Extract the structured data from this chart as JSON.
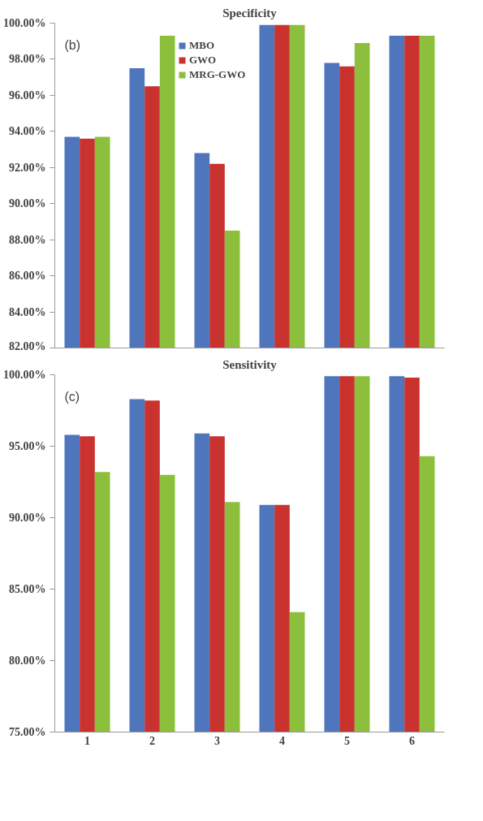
{
  "chart_data": [
    {
      "type": "bar",
      "title": "Specificity",
      "annotations": [
        "(b)"
      ],
      "categories": [
        "1",
        "2",
        "3",
        "4",
        "5",
        "6"
      ],
      "series": [
        {
          "name": "MBO",
          "color": "#4f75bd",
          "values": [
            93.7,
            97.5,
            92.8,
            99.9,
            97.8,
            99.3
          ]
        },
        {
          "name": "GWO",
          "color": "#c9322e",
          "values": [
            93.6,
            96.5,
            92.2,
            99.9,
            97.6,
            99.3
          ]
        },
        {
          "name": "MRG-GWO",
          "color": "#8cc03c",
          "values": [
            93.7,
            99.3,
            88.5,
            99.9,
            98.9,
            99.3
          ]
        }
      ],
      "ylim": [
        82,
        100
      ],
      "yticks": [
        {
          "value": 82,
          "label": "82.00%"
        },
        {
          "value": 84,
          "label": "84.00%"
        },
        {
          "value": 86,
          "label": "86.00%"
        },
        {
          "value": 88,
          "label": "88.00%"
        },
        {
          "value": 90,
          "label": "90.00%"
        },
        {
          "value": 92,
          "label": "92.00%"
        },
        {
          "value": 94,
          "label": "94.00%"
        },
        {
          "value": 96,
          "label": "96.00%"
        },
        {
          "value": 98,
          "label": "98.00%"
        },
        {
          "value": 100,
          "label": "100.00%"
        }
      ],
      "tick_labels": "y",
      "legend": "top",
      "grid": false
    },
    {
      "type": "bar",
      "title": "Sensitivity",
      "annotations": [
        "(c)"
      ],
      "categories": [
        "1",
        "2",
        "3",
        "4",
        "5",
        "6"
      ],
      "series": [
        {
          "color": "#4f75bd",
          "values": [
            95.8,
            98.3,
            95.9,
            90.9,
            99.9,
            99.9
          ]
        },
        {
          "color": "#c9322e",
          "values": [
            95.7,
            98.2,
            95.7,
            90.9,
            99.9,
            99.8
          ]
        },
        {
          "color": "#8cc03c",
          "values": [
            93.2,
            93.0,
            91.1,
            83.4,
            99.9,
            94.3
          ]
        }
      ],
      "ylim": [
        75,
        100
      ],
      "yticks": [
        {
          "value": 75,
          "label": "75.00%"
        },
        {
          "value": 80,
          "label": "80.00%"
        },
        {
          "value": 85,
          "label": "85.00%"
        },
        {
          "value": 90,
          "label": "90.00%"
        },
        {
          "value": 95,
          "label": "95.00%"
        },
        {
          "value": 100,
          "label": "100.00%"
        }
      ],
      "legend": false,
      "grid": false
    }
  ]
}
